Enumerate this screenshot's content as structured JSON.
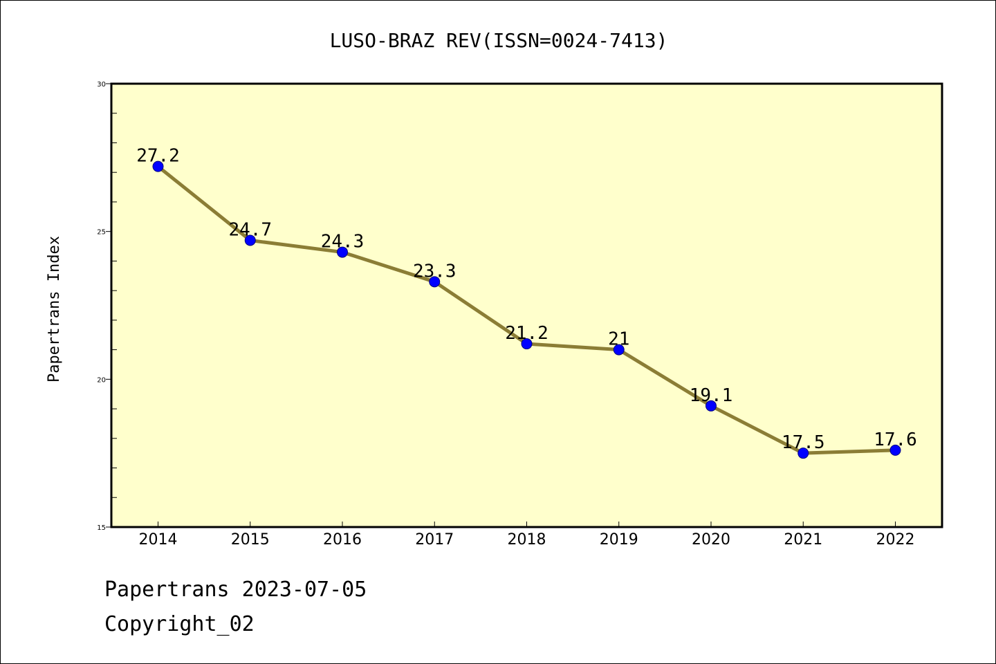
{
  "chart_data": {
    "type": "line",
    "title": "LUSO-BRAZ REV(ISSN=0024-7413)",
    "xlabel": "",
    "ylabel": "Papertrans Index",
    "categories": [
      "2014",
      "2015",
      "2016",
      "2017",
      "2018",
      "2019",
      "2020",
      "2021",
      "2022"
    ],
    "series": [
      {
        "values": [
          27.2,
          24.7,
          24.3,
          23.3,
          21.2,
          21,
          19.1,
          17.5,
          17.6
        ],
        "labels": [
          "27.2",
          "24.7",
          "24.3",
          "23.3",
          "21.2",
          "21",
          "19.1",
          "17.5",
          "17.6"
        ]
      }
    ],
    "ylim": [
      15,
      30
    ],
    "yticks": [
      15,
      20,
      25,
      30
    ],
    "y_minor_step": 1,
    "grid": false,
    "legend": "none",
    "colors": {
      "plot_background": "#ffffcc",
      "line": "#8b7d35",
      "marker": "#0000ff",
      "marker_edge": "#000080"
    }
  },
  "footer": {
    "date_text": "Papertrans 2023-07-05",
    "copyright_text": "Copyright_02"
  }
}
